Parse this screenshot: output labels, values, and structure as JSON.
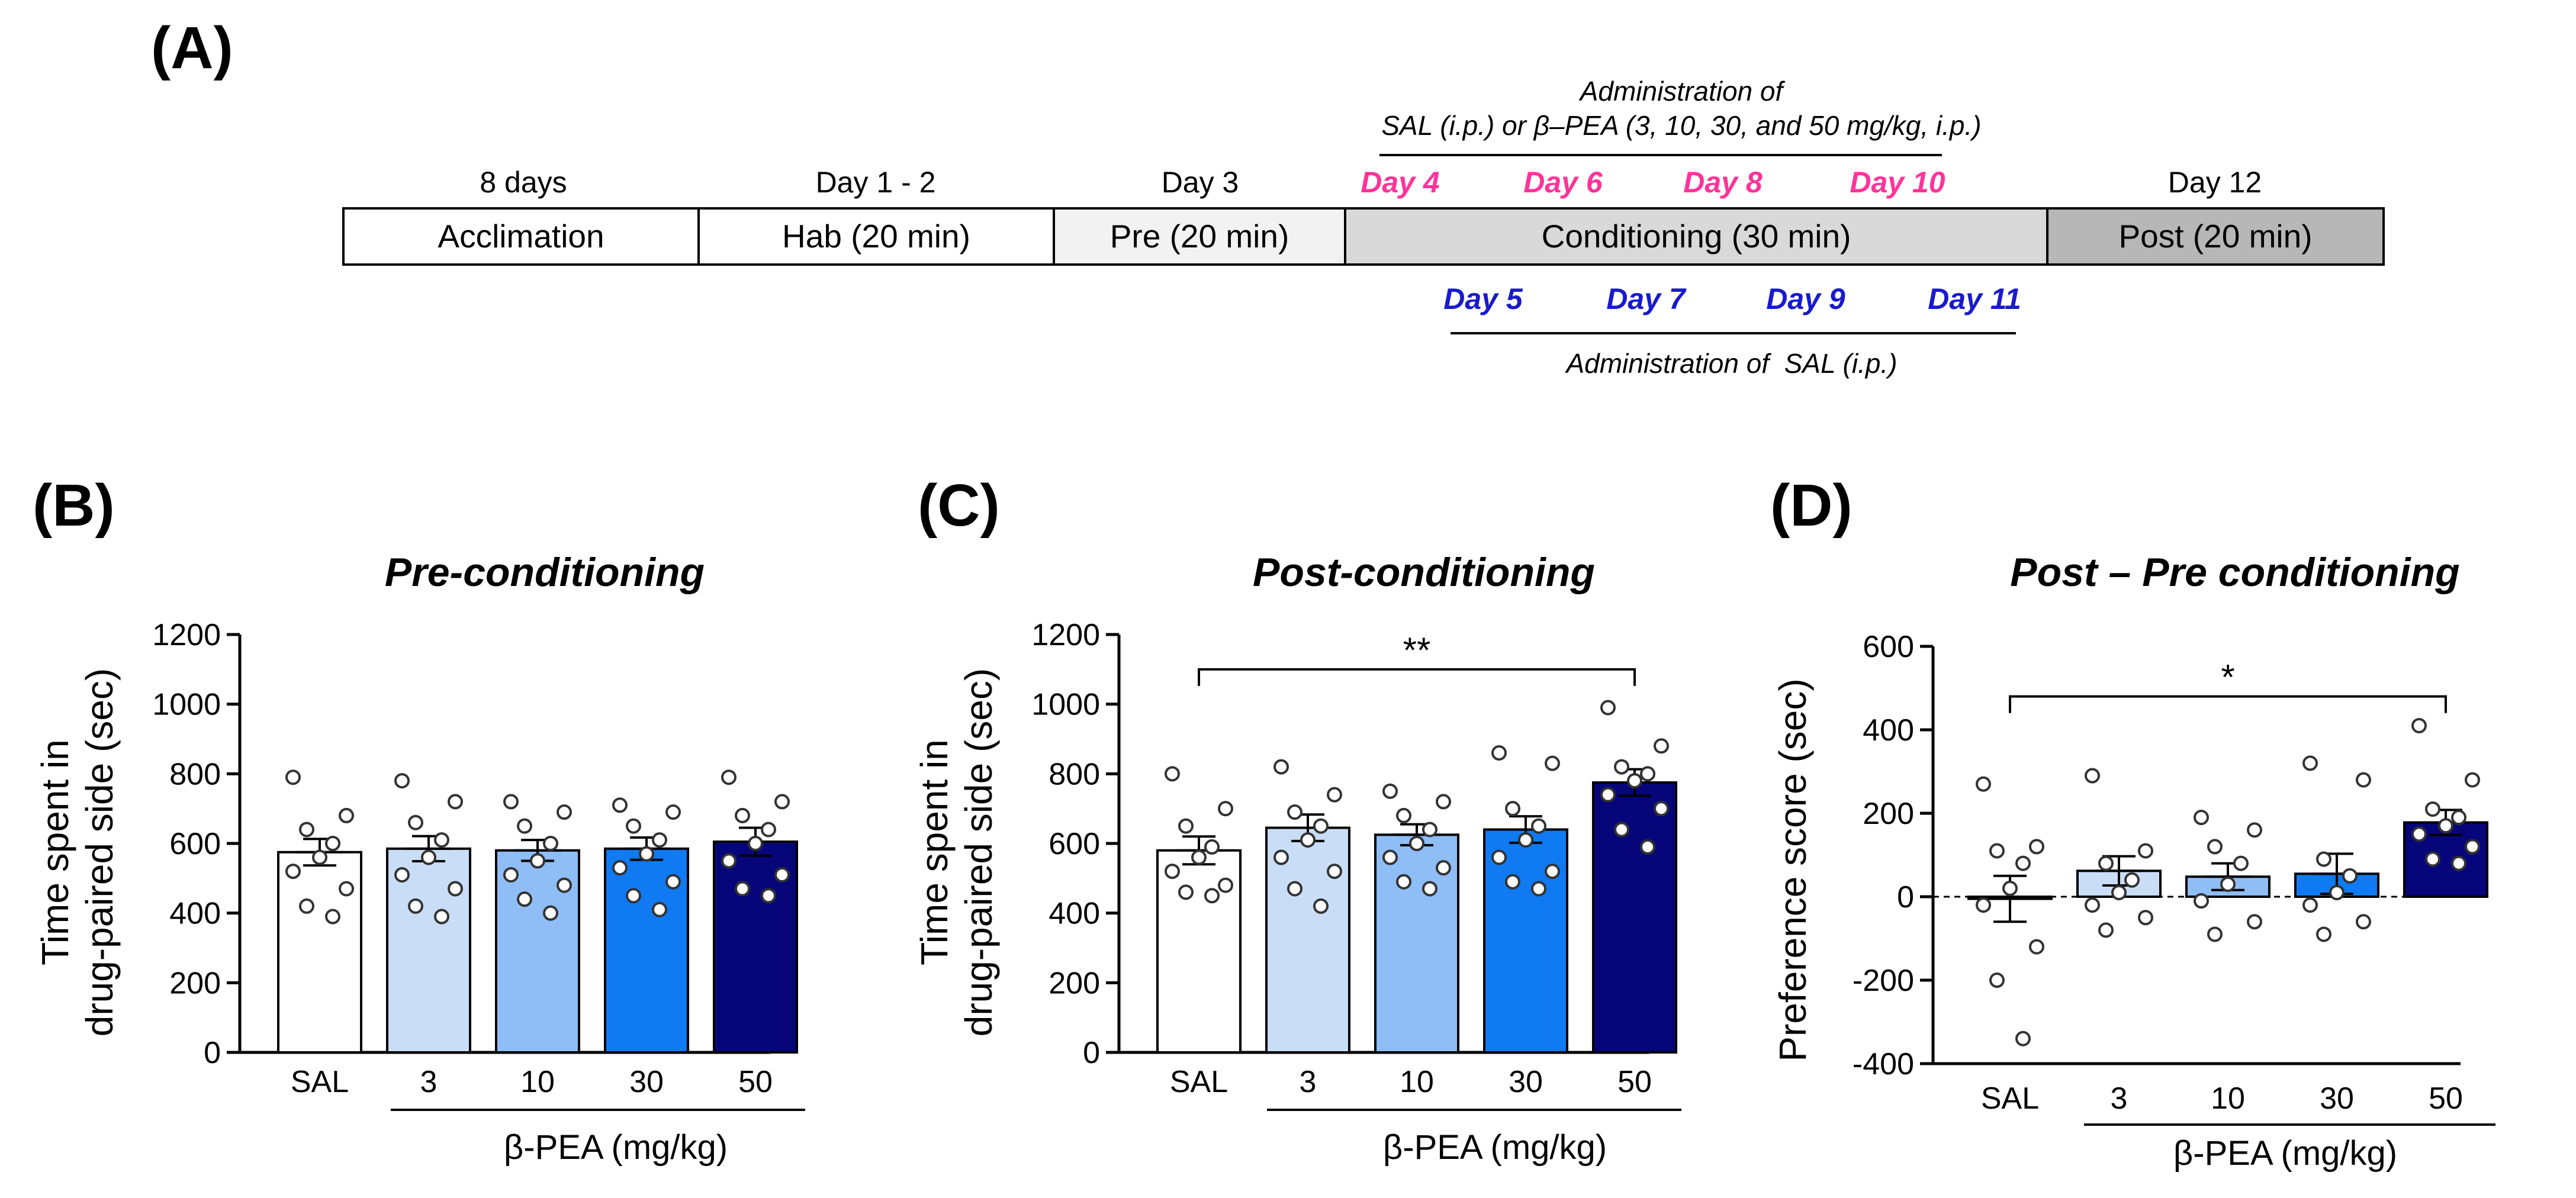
{
  "panel_a": {
    "label": "(A)",
    "segments": [
      {
        "top": "8 days",
        "label": "Acclimation",
        "fill": "#ffffff"
      },
      {
        "top": "Day 1 - 2",
        "label": "Hab  (20 min)",
        "fill": "#ffffff"
      },
      {
        "top": "Day 3",
        "label": "Pre  (20 min)",
        "fill": "#f2f2f2"
      },
      {
        "top": "",
        "label": "Conditioning  (30 min)",
        "fill": "#d9d9d9"
      },
      {
        "top": "Day 12",
        "label": "Post  (20 min)",
        "fill": "#b7b7b7"
      }
    ],
    "pink_days": [
      "Day 4",
      "Day 6",
      "Day 8",
      "Day 10"
    ],
    "blue_days": [
      "Day 5",
      "Day 7",
      "Day 9",
      "Day 11"
    ],
    "admin_top_line1": "Administration of",
    "admin_top_line2": "SAL (i.p.) or β–PEA (3, 10, 30, and 50 mg/kg, i.p.)",
    "admin_bottom": "Administration of  SAL (i.p.)",
    "colors": {
      "pink": "#ff3399",
      "blue": "#1a1acc"
    }
  },
  "colors": {
    "bars": [
      "#ffffff",
      "#c9ddf7",
      "#8fbdf5",
      "#0f7af2",
      "#06067a"
    ]
  },
  "chart_data": [
    {
      "type": "bar",
      "panel": "(B)",
      "title": "Pre-conditioning",
      "ylabel_line1": "Time spent in",
      "ylabel_line2": "drug-paired side (sec)",
      "xlabel": "β-PEA (mg/kg)",
      "categories": [
        "SAL",
        "3",
        "10",
        "30",
        "50"
      ],
      "values": [
        575,
        585,
        580,
        585,
        605
      ],
      "sem": [
        38,
        36,
        30,
        32,
        40
      ],
      "ylim": [
        0,
        1200
      ],
      "yticks": [
        0,
        200,
        400,
        600,
        800,
        1000,
        1200
      ],
      "points": [
        [
          790,
          680,
          640,
          600,
          560,
          520,
          470,
          420,
          390
        ],
        [
          780,
          720,
          660,
          610,
          560,
          510,
          470,
          420,
          390
        ],
        [
          720,
          690,
          650,
          600,
          550,
          510,
          480,
          440,
          400
        ],
        [
          710,
          690,
          650,
          610,
          570,
          530,
          490,
          450,
          410
        ],
        [
          790,
          720,
          680,
          640,
          600,
          550,
          510,
          470,
          450
        ]
      ],
      "significance": null
    },
    {
      "type": "bar",
      "panel": "(C)",
      "title": "Post-conditioning",
      "ylabel_line1": "Time spent in",
      "ylabel_line2": "drug-paired side (sec)",
      "xlabel": "β-PEA (mg/kg)",
      "categories": [
        "SAL",
        "3",
        "10",
        "30",
        "50"
      ],
      "values": [
        580,
        645,
        625,
        640,
        775
      ],
      "sem": [
        40,
        38,
        30,
        38,
        38
      ],
      "ylim": [
        0,
        1200
      ],
      "yticks": [
        0,
        200,
        400,
        600,
        800,
        1000,
        1200
      ],
      "points": [
        [
          800,
          700,
          650,
          590,
          560,
          520,
          480,
          460,
          450
        ],
        [
          820,
          740,
          690,
          650,
          610,
          560,
          520,
          470,
          420
        ],
        [
          750,
          720,
          680,
          640,
          600,
          560,
          530,
          490,
          470
        ],
        [
          860,
          830,
          700,
          650,
          610,
          560,
          520,
          490,
          470
        ],
        [
          990,
          880,
          820,
          800,
          780,
          740,
          700,
          640,
          590
        ]
      ],
      "significance": {
        "from": 0,
        "to": 4,
        "label": "**",
        "y": 1100
      }
    },
    {
      "type": "bar",
      "panel": "(D)",
      "title": "Post – Pre conditioning",
      "ylabel_line1": "Preference score (sec)",
      "ylabel_line2": "",
      "xlabel": "β-PEA (mg/kg)",
      "categories": [
        "SAL",
        "3",
        "10",
        "30",
        "50"
      ],
      "values": [
        -5,
        62,
        48,
        55,
        178
      ],
      "sem": [
        55,
        35,
        32,
        48,
        30
      ],
      "ylim": [
        -400,
        600
      ],
      "yticks": [
        -400,
        -200,
        0,
        200,
        400,
        600
      ],
      "points": [
        [
          270,
          120,
          110,
          80,
          20,
          -20,
          -120,
          -200,
          -340
        ],
        [
          290,
          110,
          80,
          40,
          10,
          -20,
          -50,
          -80
        ],
        [
          190,
          160,
          120,
          80,
          30,
          -10,
          -60,
          -90
        ],
        [
          320,
          280,
          90,
          50,
          10,
          -20,
          -60,
          -90
        ],
        [
          410,
          280,
          210,
          190,
          170,
          150,
          120,
          90,
          80
        ]
      ],
      "significance": {
        "from": 0,
        "to": 4,
        "label": "*",
        "y": 480
      }
    }
  ]
}
